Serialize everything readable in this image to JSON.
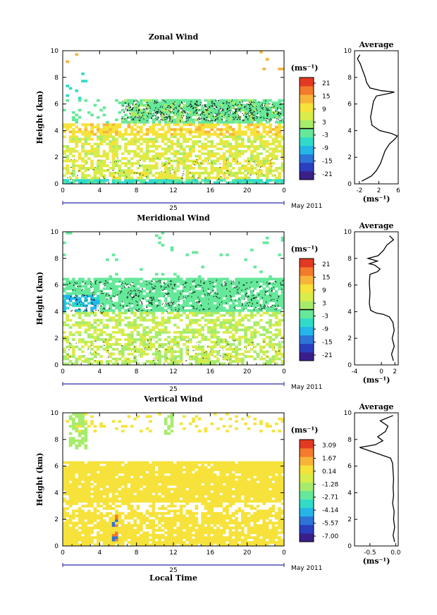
{
  "date_label": "25",
  "month_label": "May 2011",
  "x_axis_title": "Local Time",
  "y_axis_title": "Height (km)",
  "colorbar_unit": "(ms⁻¹)",
  "profile_unit": "(ms⁻¹)",
  "profile_title": "Average",
  "x_ticks": [
    "0",
    "4",
    "8",
    "12",
    "16",
    "20",
    "0"
  ],
  "y_ticks": [
    "0",
    "2",
    "4",
    "6",
    "8",
    "10"
  ],
  "colors": {
    "colormap": [
      "#3a1f8a",
      "#2a3fbf",
      "#2c74d8",
      "#25b6e8",
      "#30dcc8",
      "#66e89a",
      "#a6ec6a",
      "#d8ec4a",
      "#f6e23a",
      "#f8b43a",
      "#f47a2c",
      "#e23a22"
    ]
  },
  "chart_data": [
    {
      "type": "heatmap",
      "title": "Zonal Wind",
      "xlabel": "",
      "ylabel": "Height (km)",
      "x_range": [
        0,
        24
      ],
      "ylim": [
        0,
        10
      ],
      "colorbar_ticks": [
        "21",
        "15",
        "9",
        "3",
        "-3",
        "-9",
        "-15",
        "-21"
      ],
      "colorbar_range": [
        -24,
        24
      ],
      "profile": {
        "title": "Average",
        "xlabel": "(ms⁻¹)",
        "xticks": [
          "-2",
          "2",
          "6"
        ],
        "xlim": [
          -3,
          6
        ],
        "points": [
          [
            -1.5,
            0.2
          ],
          [
            0.5,
            0.6
          ],
          [
            1.5,
            1.0
          ],
          [
            2.3,
            1.5
          ],
          [
            2.8,
            2.0
          ],
          [
            3.3,
            2.5
          ],
          [
            4.2,
            3.0
          ],
          [
            5.4,
            3.4
          ],
          [
            5.8,
            3.6
          ],
          [
            4.5,
            3.8
          ],
          [
            2.2,
            4.0
          ],
          [
            0.6,
            4.4
          ],
          [
            0.3,
            5.0
          ],
          [
            0.6,
            5.6
          ],
          [
            0.9,
            6.2
          ],
          [
            1.5,
            6.6
          ],
          [
            4.2,
            6.8
          ],
          [
            5.2,
            6.9
          ],
          [
            2.5,
            7.0
          ],
          [
            0.2,
            7.2
          ],
          [
            -0.5,
            7.6
          ],
          [
            -0.8,
            8.0
          ],
          [
            -1.4,
            8.6
          ],
          [
            -1.8,
            9.0
          ],
          [
            -2.4,
            9.4
          ],
          [
            -1.9,
            9.7
          ]
        ]
      }
    },
    {
      "type": "heatmap",
      "title": "Meridional Wind",
      "xlabel": "",
      "ylabel": "Height (km)",
      "x_range": [
        0,
        24
      ],
      "ylim": [
        0,
        10
      ],
      "colorbar_ticks": [
        "21",
        "15",
        "9",
        "3",
        "-3",
        "-9",
        "-15",
        "-21"
      ],
      "colorbar_range": [
        -24,
        24
      ],
      "profile": {
        "title": "Average",
        "xlabel": "(ms⁻¹)",
        "xticks": [
          "-4",
          "0",
          "2"
        ],
        "xlim": [
          -4,
          2.5
        ],
        "points": [
          [
            1.8,
            0.3
          ],
          [
            1.5,
            0.8
          ],
          [
            1.9,
            1.4
          ],
          [
            1.6,
            2.0
          ],
          [
            1.9,
            2.6
          ],
          [
            1.7,
            3.2
          ],
          [
            1.2,
            3.6
          ],
          [
            0.3,
            3.8
          ],
          [
            -0.8,
            3.9
          ],
          [
            -1.6,
            4.1
          ],
          [
            -1.8,
            4.6
          ],
          [
            -1.7,
            5.4
          ],
          [
            -1.8,
            6.2
          ],
          [
            -1.7,
            6.8
          ],
          [
            -0.6,
            7.0
          ],
          [
            -0.2,
            7.2
          ],
          [
            -1.0,
            7.5
          ],
          [
            -1.8,
            7.6
          ],
          [
            -0.6,
            7.8
          ],
          [
            -2.0,
            8.0
          ],
          [
            -0.5,
            8.2
          ],
          [
            0.3,
            8.6
          ],
          [
            0.8,
            9.0
          ],
          [
            1.8,
            9.4
          ],
          [
            1.2,
            9.7
          ]
        ]
      }
    },
    {
      "type": "heatmap",
      "title": "Vertical Wind",
      "xlabel": "Local Time",
      "ylabel": "Height (km)",
      "x_range": [
        0,
        24
      ],
      "ylim": [
        0,
        10
      ],
      "colorbar_ticks": [
        "3.09",
        "1.67",
        "0.14",
        "-1.28",
        "-2.71",
        "-4.14",
        "-5.57",
        "-7.00"
      ],
      "colorbar_range": [
        -7.7,
        3.8
      ],
      "profile": {
        "title": "Average",
        "xlabel": "(ms⁻¹)",
        "xticks": [
          "-0.5",
          "0.0"
        ],
        "xlim": [
          -0.8,
          0.05
        ],
        "points": [
          [
            -0.02,
            0.3
          ],
          [
            -0.05,
            0.8
          ],
          [
            -0.02,
            1.4
          ],
          [
            -0.04,
            2.0
          ],
          [
            -0.03,
            2.6
          ],
          [
            -0.06,
            3.2
          ],
          [
            -0.04,
            3.8
          ],
          [
            -0.05,
            4.4
          ],
          [
            -0.04,
            5.0
          ],
          [
            -0.05,
            5.6
          ],
          [
            -0.06,
            6.2
          ],
          [
            -0.1,
            6.6
          ],
          [
            -0.7,
            7.4
          ],
          [
            -0.4,
            7.6
          ],
          [
            -0.25,
            7.9
          ],
          [
            -0.35,
            8.2
          ],
          [
            -0.2,
            8.6
          ],
          [
            -0.15,
            9.0
          ],
          [
            -0.3,
            9.4
          ],
          [
            -0.05,
            9.8
          ]
        ]
      }
    }
  ]
}
